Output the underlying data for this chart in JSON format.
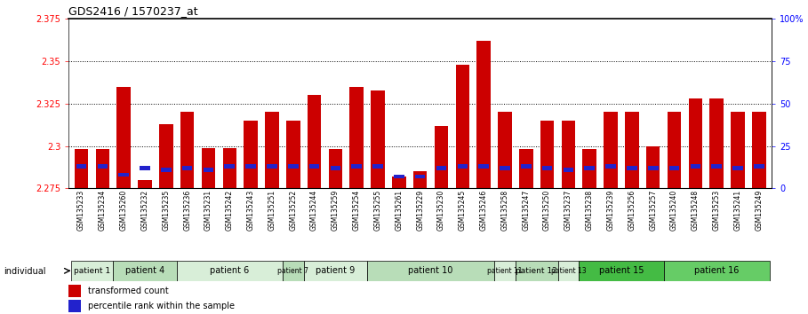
{
  "title": "GDS2416 / 1570237_at",
  "samples": [
    "GSM135233",
    "GSM135234",
    "GSM135260",
    "GSM135232",
    "GSM135235",
    "GSM135236",
    "GSM135231",
    "GSM135242",
    "GSM135243",
    "GSM135251",
    "GSM135252",
    "GSM135244",
    "GSM135259",
    "GSM135254",
    "GSM135255",
    "GSM135261",
    "GSM135229",
    "GSM135230",
    "GSM135245",
    "GSM135246",
    "GSM135258",
    "GSM135247",
    "GSM135250",
    "GSM135237",
    "GSM135238",
    "GSM135239",
    "GSM135256",
    "GSM135257",
    "GSM135240",
    "GSM135248",
    "GSM135253",
    "GSM135241",
    "GSM135249"
  ],
  "red_values": [
    2.298,
    2.298,
    2.335,
    2.28,
    2.313,
    2.32,
    2.299,
    2.299,
    2.315,
    2.32,
    2.315,
    2.33,
    2.298,
    2.335,
    2.333,
    2.282,
    2.285,
    2.312,
    2.348,
    2.362,
    2.32,
    2.298,
    2.315,
    2.315,
    2.298,
    2.32,
    2.32,
    2.3,
    2.32,
    2.328,
    2.328,
    2.32,
    2.32
  ],
  "blue_values": [
    2.288,
    2.288,
    2.283,
    2.287,
    2.286,
    2.287,
    2.286,
    2.288,
    2.288,
    2.288,
    2.288,
    2.288,
    2.287,
    2.288,
    2.288,
    2.282,
    2.282,
    2.287,
    2.288,
    2.288,
    2.287,
    2.288,
    2.287,
    2.286,
    2.287,
    2.288,
    2.287,
    2.287,
    2.287,
    2.288,
    2.288,
    2.287,
    2.288
  ],
  "ymin": 2.275,
  "ymax": 2.375,
  "yticks": [
    2.275,
    2.3,
    2.325,
    2.35,
    2.375
  ],
  "ytick_labels": [
    "2.275",
    "2.3",
    "2.325",
    "2.35",
    "2.375"
  ],
  "right_yticks": [
    0,
    25,
    50,
    75,
    100
  ],
  "right_ytick_labels": [
    "0",
    "25",
    "50",
    "75",
    "100%"
  ],
  "dotted_lines": [
    2.3,
    2.325,
    2.35
  ],
  "patient_groups": [
    {
      "label": "patient 1",
      "start": 0,
      "end": 2,
      "color": "#d8eed8"
    },
    {
      "label": "patient 4",
      "start": 2,
      "end": 5,
      "color": "#b8ddb8"
    },
    {
      "label": "patient 6",
      "start": 5,
      "end": 10,
      "color": "#d8eed8"
    },
    {
      "label": "patient 7",
      "start": 10,
      "end": 11,
      "color": "#b8ddb8"
    },
    {
      "label": "patient 9",
      "start": 11,
      "end": 14,
      "color": "#d8eed8"
    },
    {
      "label": "patient 10",
      "start": 14,
      "end": 20,
      "color": "#b8ddb8"
    },
    {
      "label": "patient 11",
      "start": 20,
      "end": 21,
      "color": "#d8eed8"
    },
    {
      "label": "patient 12",
      "start": 21,
      "end": 23,
      "color": "#b8ddb8"
    },
    {
      "label": "patient 13",
      "start": 23,
      "end": 24,
      "color": "#d8eed8"
    },
    {
      "label": "patient 15",
      "start": 24,
      "end": 28,
      "color": "#44bb44"
    },
    {
      "label": "patient 16",
      "start": 28,
      "end": 33,
      "color": "#66cc66"
    }
  ],
  "bar_color_red": "#cc0000",
  "bar_color_blue": "#2222cc",
  "bar_width": 0.65,
  "legend_red": "transformed count",
  "legend_blue": "percentile rank within the sample",
  "background_color": "#ffffff"
}
